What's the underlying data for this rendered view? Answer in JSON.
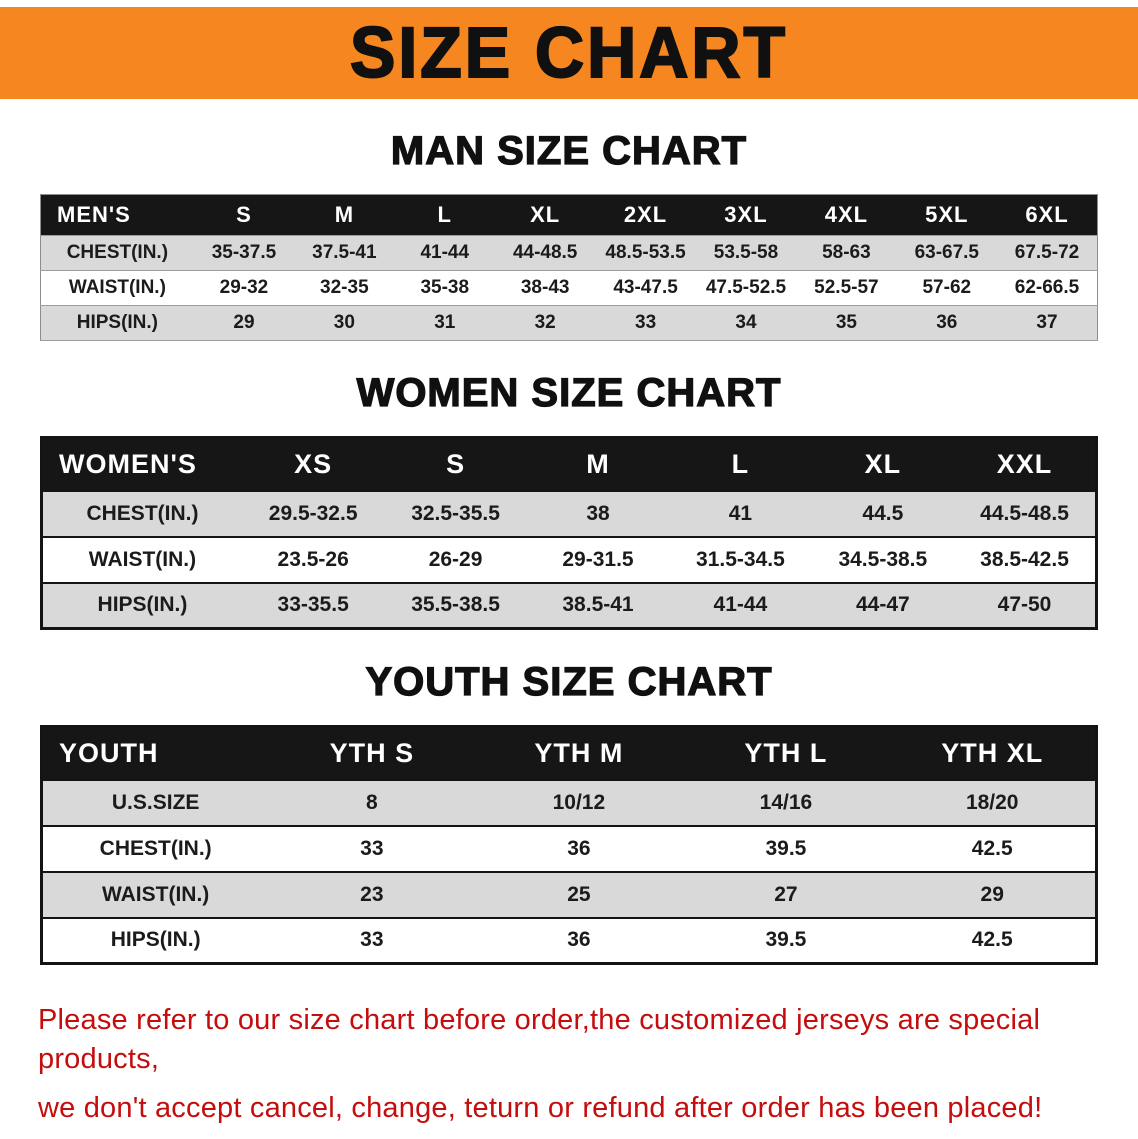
{
  "banner": {
    "title": "SIZE CHART"
  },
  "tables": [
    {
      "id": "mens",
      "heading": "MAN SIZE CHART",
      "header": [
        "MEN'S",
        "S",
        "M",
        "L",
        "XL",
        "2XL",
        "3XL",
        "4XL",
        "5XL",
        "6XL"
      ],
      "rows": [
        [
          "CHEST(IN.)",
          "35-37.5",
          "37.5-41",
          "41-44",
          "44-48.5",
          "48.5-53.5",
          "53.5-58",
          "58-63",
          "63-67.5",
          "67.5-72"
        ],
        [
          "WAIST(IN.)",
          "29-32",
          "32-35",
          "35-38",
          "38-43",
          "43-47.5",
          "47.5-52.5",
          "52.5-57",
          "57-62",
          "62-66.5"
        ],
        [
          "HIPS(IN.)",
          "29",
          "30",
          "31",
          "32",
          "33",
          "34",
          "35",
          "36",
          "37"
        ]
      ]
    },
    {
      "id": "womens",
      "heading": "WOMEN SIZE CHART",
      "header": [
        "WOMEN'S",
        "XS",
        "S",
        "M",
        "L",
        "XL",
        "XXL"
      ],
      "rows": [
        [
          "CHEST(IN.)",
          "29.5-32.5",
          "32.5-35.5",
          "38",
          "41",
          "44.5",
          "44.5-48.5"
        ],
        [
          "WAIST(IN.)",
          "23.5-26",
          "26-29",
          "29-31.5",
          "31.5-34.5",
          "34.5-38.5",
          "38.5-42.5"
        ],
        [
          "HIPS(IN.)",
          "33-35.5",
          "35.5-38.5",
          "38.5-41",
          "41-44",
          "44-47",
          "47-50"
        ]
      ]
    },
    {
      "id": "youth",
      "heading": "YOUTH SIZE CHART",
      "header": [
        "YOUTH",
        "YTH S",
        "YTH M",
        "YTH L",
        "YTH XL"
      ],
      "rows": [
        [
          "U.S.SIZE",
          "8",
          "10/12",
          "14/16",
          "18/20"
        ],
        [
          "CHEST(IN.)",
          "33",
          "36",
          "39.5",
          "42.5"
        ],
        [
          "WAIST(IN.)",
          "23",
          "25",
          "27",
          "29"
        ],
        [
          "HIPS(IN.)",
          "33",
          "36",
          "39.5",
          "42.5"
        ]
      ]
    }
  ],
  "footer": {
    "line1": "Please refer to our size chart before order,the customized jerseys are special products,",
    "line2": "we don't accept cancel, change, teturn or refund after order has been placed!"
  },
  "colors": {
    "banner_orange": "#F6861F",
    "header_black": "#161616",
    "row_gray": "#D9D9D9",
    "footer_red": "#C40D0D"
  }
}
